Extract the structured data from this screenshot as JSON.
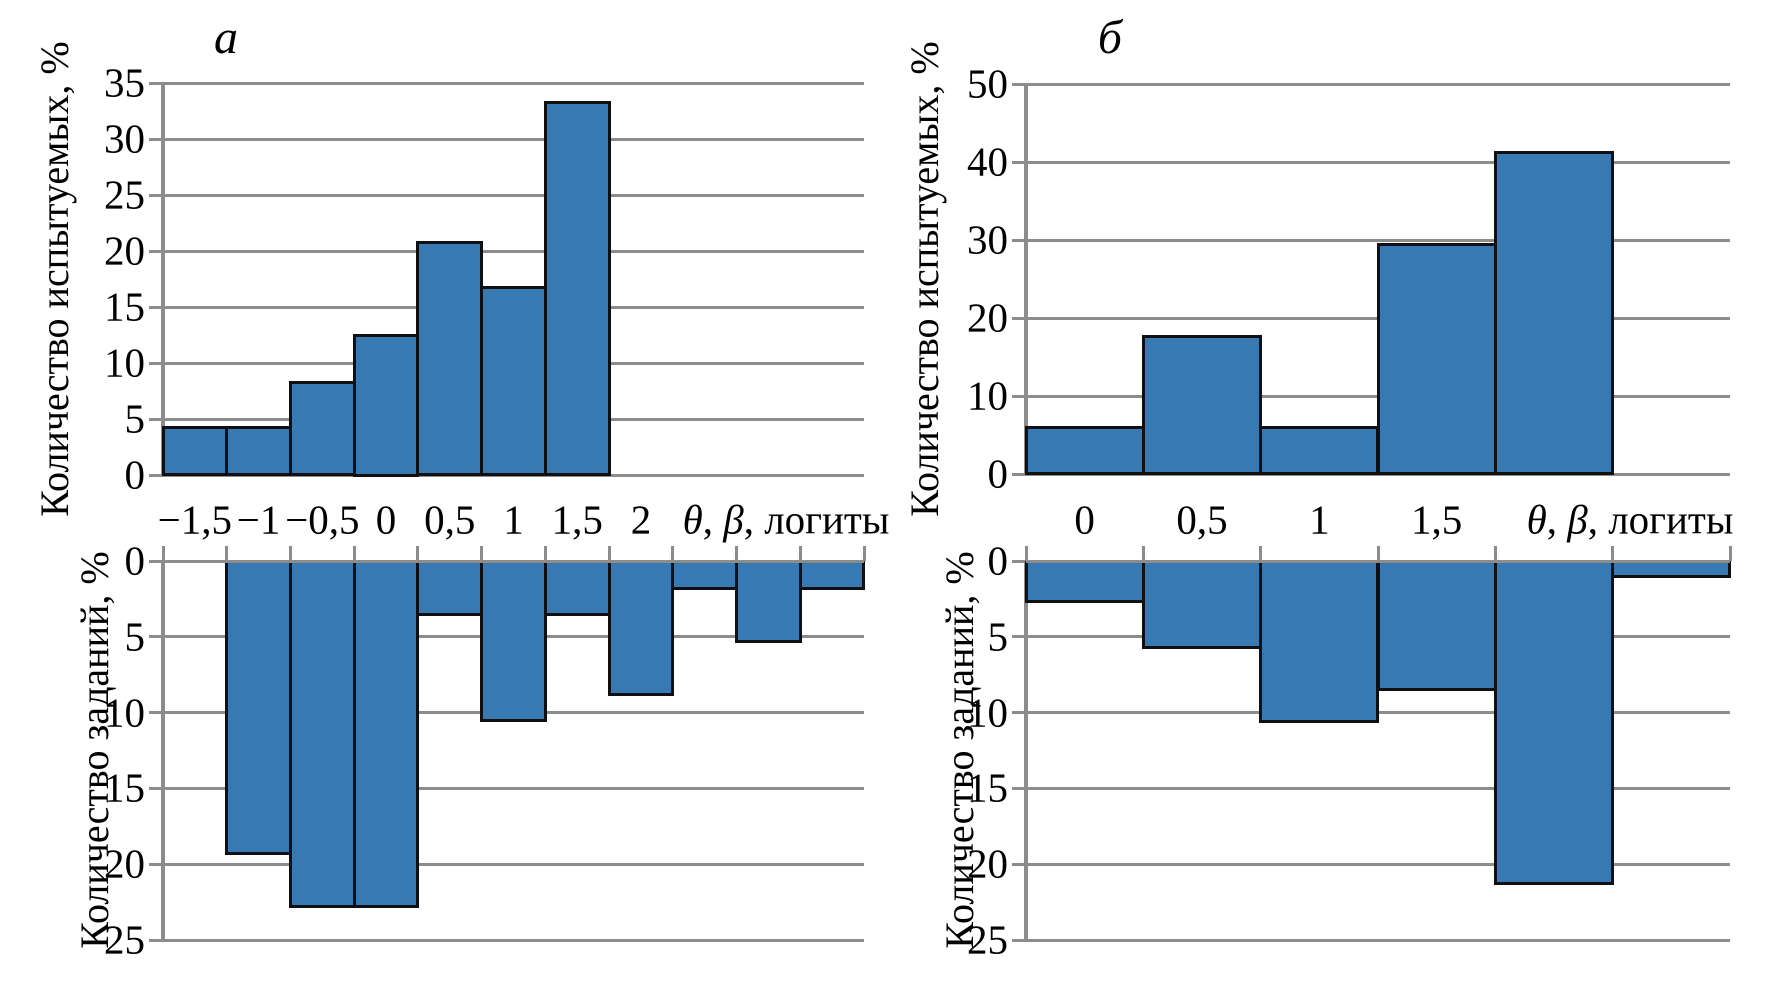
{
  "colors": {
    "bar_fill": "#3779B3",
    "bar_border": "#0F0F14",
    "grid": "#8E8C8A",
    "text": "#000000",
    "background": "#FFFFFF"
  },
  "chart_data": [
    {
      "panel": "a",
      "title": "a",
      "type": "bar",
      "x_unit_label": "θ, β, логиты",
      "x_tick_labels": [
        "−1,5",
        "−1",
        "−0,5",
        "0",
        "0,5",
        "1",
        "1,5",
        "2"
      ],
      "top": {
        "ylabel": "Количество испытуемых, %",
        "ylim": [
          0,
          35
        ],
        "ystep": 5,
        "orientation": "up",
        "bins_total": 11,
        "first_bin": 1,
        "values": [
          4.2,
          4.2,
          8.3,
          12.5,
          20.8,
          16.7,
          33.3
        ]
      },
      "bottom": {
        "ylabel": "Количество заданий, %",
        "ylim": [
          0,
          25
        ],
        "ystep": 5,
        "orientation": "down",
        "bins_total": 11,
        "first_bin": 2,
        "values": [
          19.3,
          22.8,
          22.8,
          3.5,
          10.5,
          3.5,
          8.8,
          1.8,
          5.3,
          1.8
        ]
      }
    },
    {
      "panel": "б",
      "title": "б",
      "type": "bar",
      "x_unit_label": "θ, β, логиты",
      "x_tick_labels": [
        "0",
        "0,5",
        "1",
        "1,5"
      ],
      "top": {
        "ylabel": "Количество испытуемых, %",
        "ylim": [
          0,
          50
        ],
        "ystep": 10,
        "orientation": "up",
        "bins_total": 6,
        "first_bin": 1,
        "values": [
          5.9,
          17.6,
          5.9,
          29.4,
          41.2
        ]
      },
      "bottom": {
        "ylabel": "Количество заданий, %",
        "ylim": [
          0,
          25
        ],
        "ystep": 5,
        "orientation": "down",
        "bins_total": 6,
        "first_bin": 1,
        "values": [
          2.7,
          5.7,
          10.6,
          8.5,
          21.3,
          1.0
        ]
      }
    }
  ]
}
